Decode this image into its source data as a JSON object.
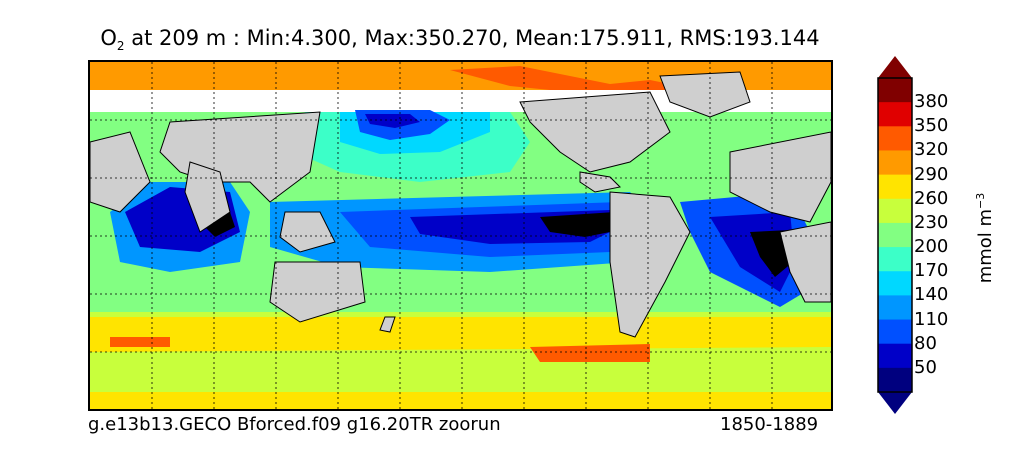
{
  "title": {
    "variable": "O",
    "subscript": "2",
    "rest": " at 209 m : Min:4.300, Max:350.270, Mean:175.911, RMS:193.144"
  },
  "footer": {
    "left": "g.e13b13.GECO Bforced.f09 g16.20TR zoorun",
    "right": "1850-1889"
  },
  "colorbar": {
    "unit_base": "mmol m",
    "unit_exponent": "−3",
    "ticks": [
      "380",
      "350",
      "320",
      "290",
      "260",
      "230",
      "200",
      "170",
      "140",
      "110",
      "80",
      "50"
    ],
    "colors": {
      "bin_365_plus": "#800000",
      "bin_350": "#e00000",
      "bin_320": "#ff5a00",
      "bin_290": "#ff9a00",
      "bin_260": "#ffe400",
      "bin_230": "#c8ff3c",
      "bin_200": "#82ff82",
      "bin_170": "#3cffc8",
      "bin_140": "#00d8ff",
      "bin_110": "#0096ff",
      "bin_80": "#0050ff",
      "bin_50": "#0000c8",
      "bin_below_50": "#00007f"
    }
  },
  "map": {
    "land_color": "#cfcfcf",
    "missing_color": "#ffffff",
    "anoxic_color": "#000000",
    "graticule": "dotted",
    "projection": "global cylindrical"
  }
}
